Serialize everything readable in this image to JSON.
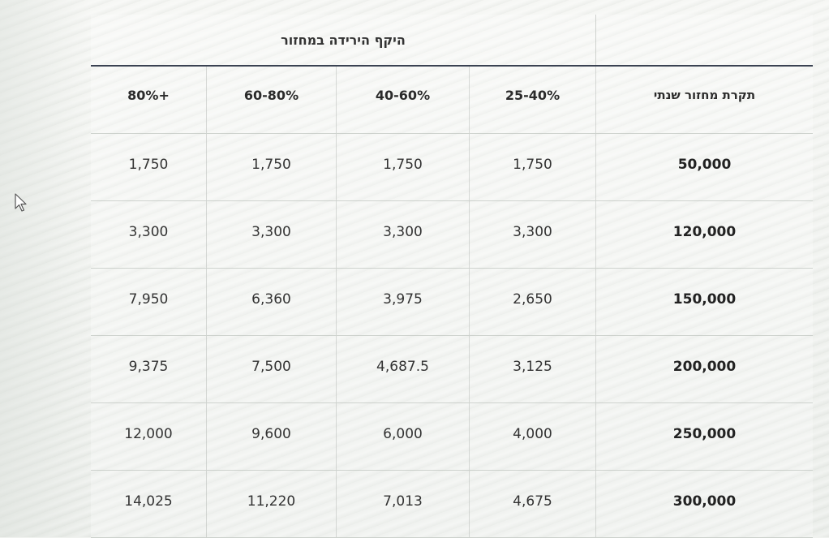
{
  "table": {
    "group_title": "היקף הירידה במחזור",
    "row_header_title": "תקרת מחזור שנתי",
    "columns": [
      "80%+",
      "60-80%",
      "40-60%",
      "25-40%"
    ],
    "rows": [
      {
        "label": "50,000",
        "values": [
          "1,750",
          "1,750",
          "1,750",
          "1,750"
        ]
      },
      {
        "label": "120,000",
        "values": [
          "3,300",
          "3,300",
          "3,300",
          "3,300"
        ]
      },
      {
        "label": "150,000",
        "values": [
          "7,950",
          "6,360",
          "3,975",
          "2,650"
        ]
      },
      {
        "label": "200,000",
        "values": [
          "9,375",
          "7,500",
          "4,687.5",
          "3,125"
        ]
      },
      {
        "label": "250,000",
        "values": [
          "12,000",
          "9,600",
          "6,000",
          "4,000"
        ]
      },
      {
        "label": "300,000",
        "values": [
          "14,025",
          "11,220",
          "7,013",
          "4,675"
        ]
      }
    ]
  },
  "cursor": {
    "icon": "mouse-pointer-icon"
  }
}
